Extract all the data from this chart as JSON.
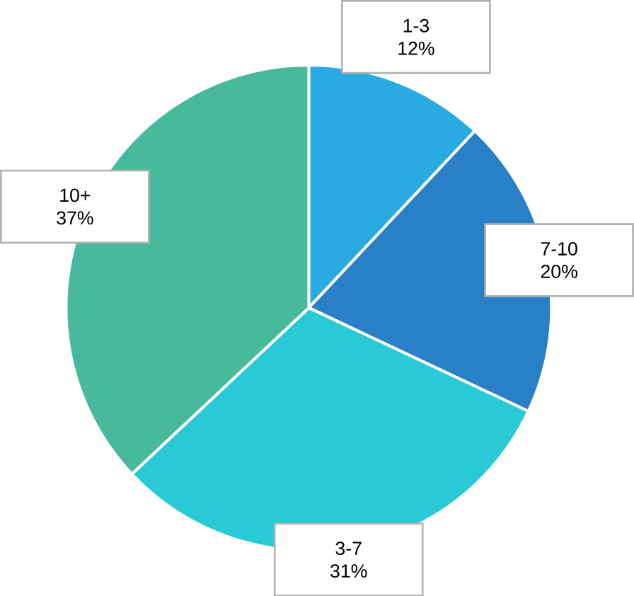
{
  "chart_data": {
    "type": "pie",
    "categories": [
      "1-3",
      "7-10",
      "3-7",
      "10+"
    ],
    "values": [
      12,
      20,
      31,
      37
    ],
    "value_labels": [
      "12%",
      "20%",
      "31%",
      "37%"
    ],
    "colors": [
      "#29abe2",
      "#2a80c6",
      "#29c9d6",
      "#48b99b"
    ]
  }
}
